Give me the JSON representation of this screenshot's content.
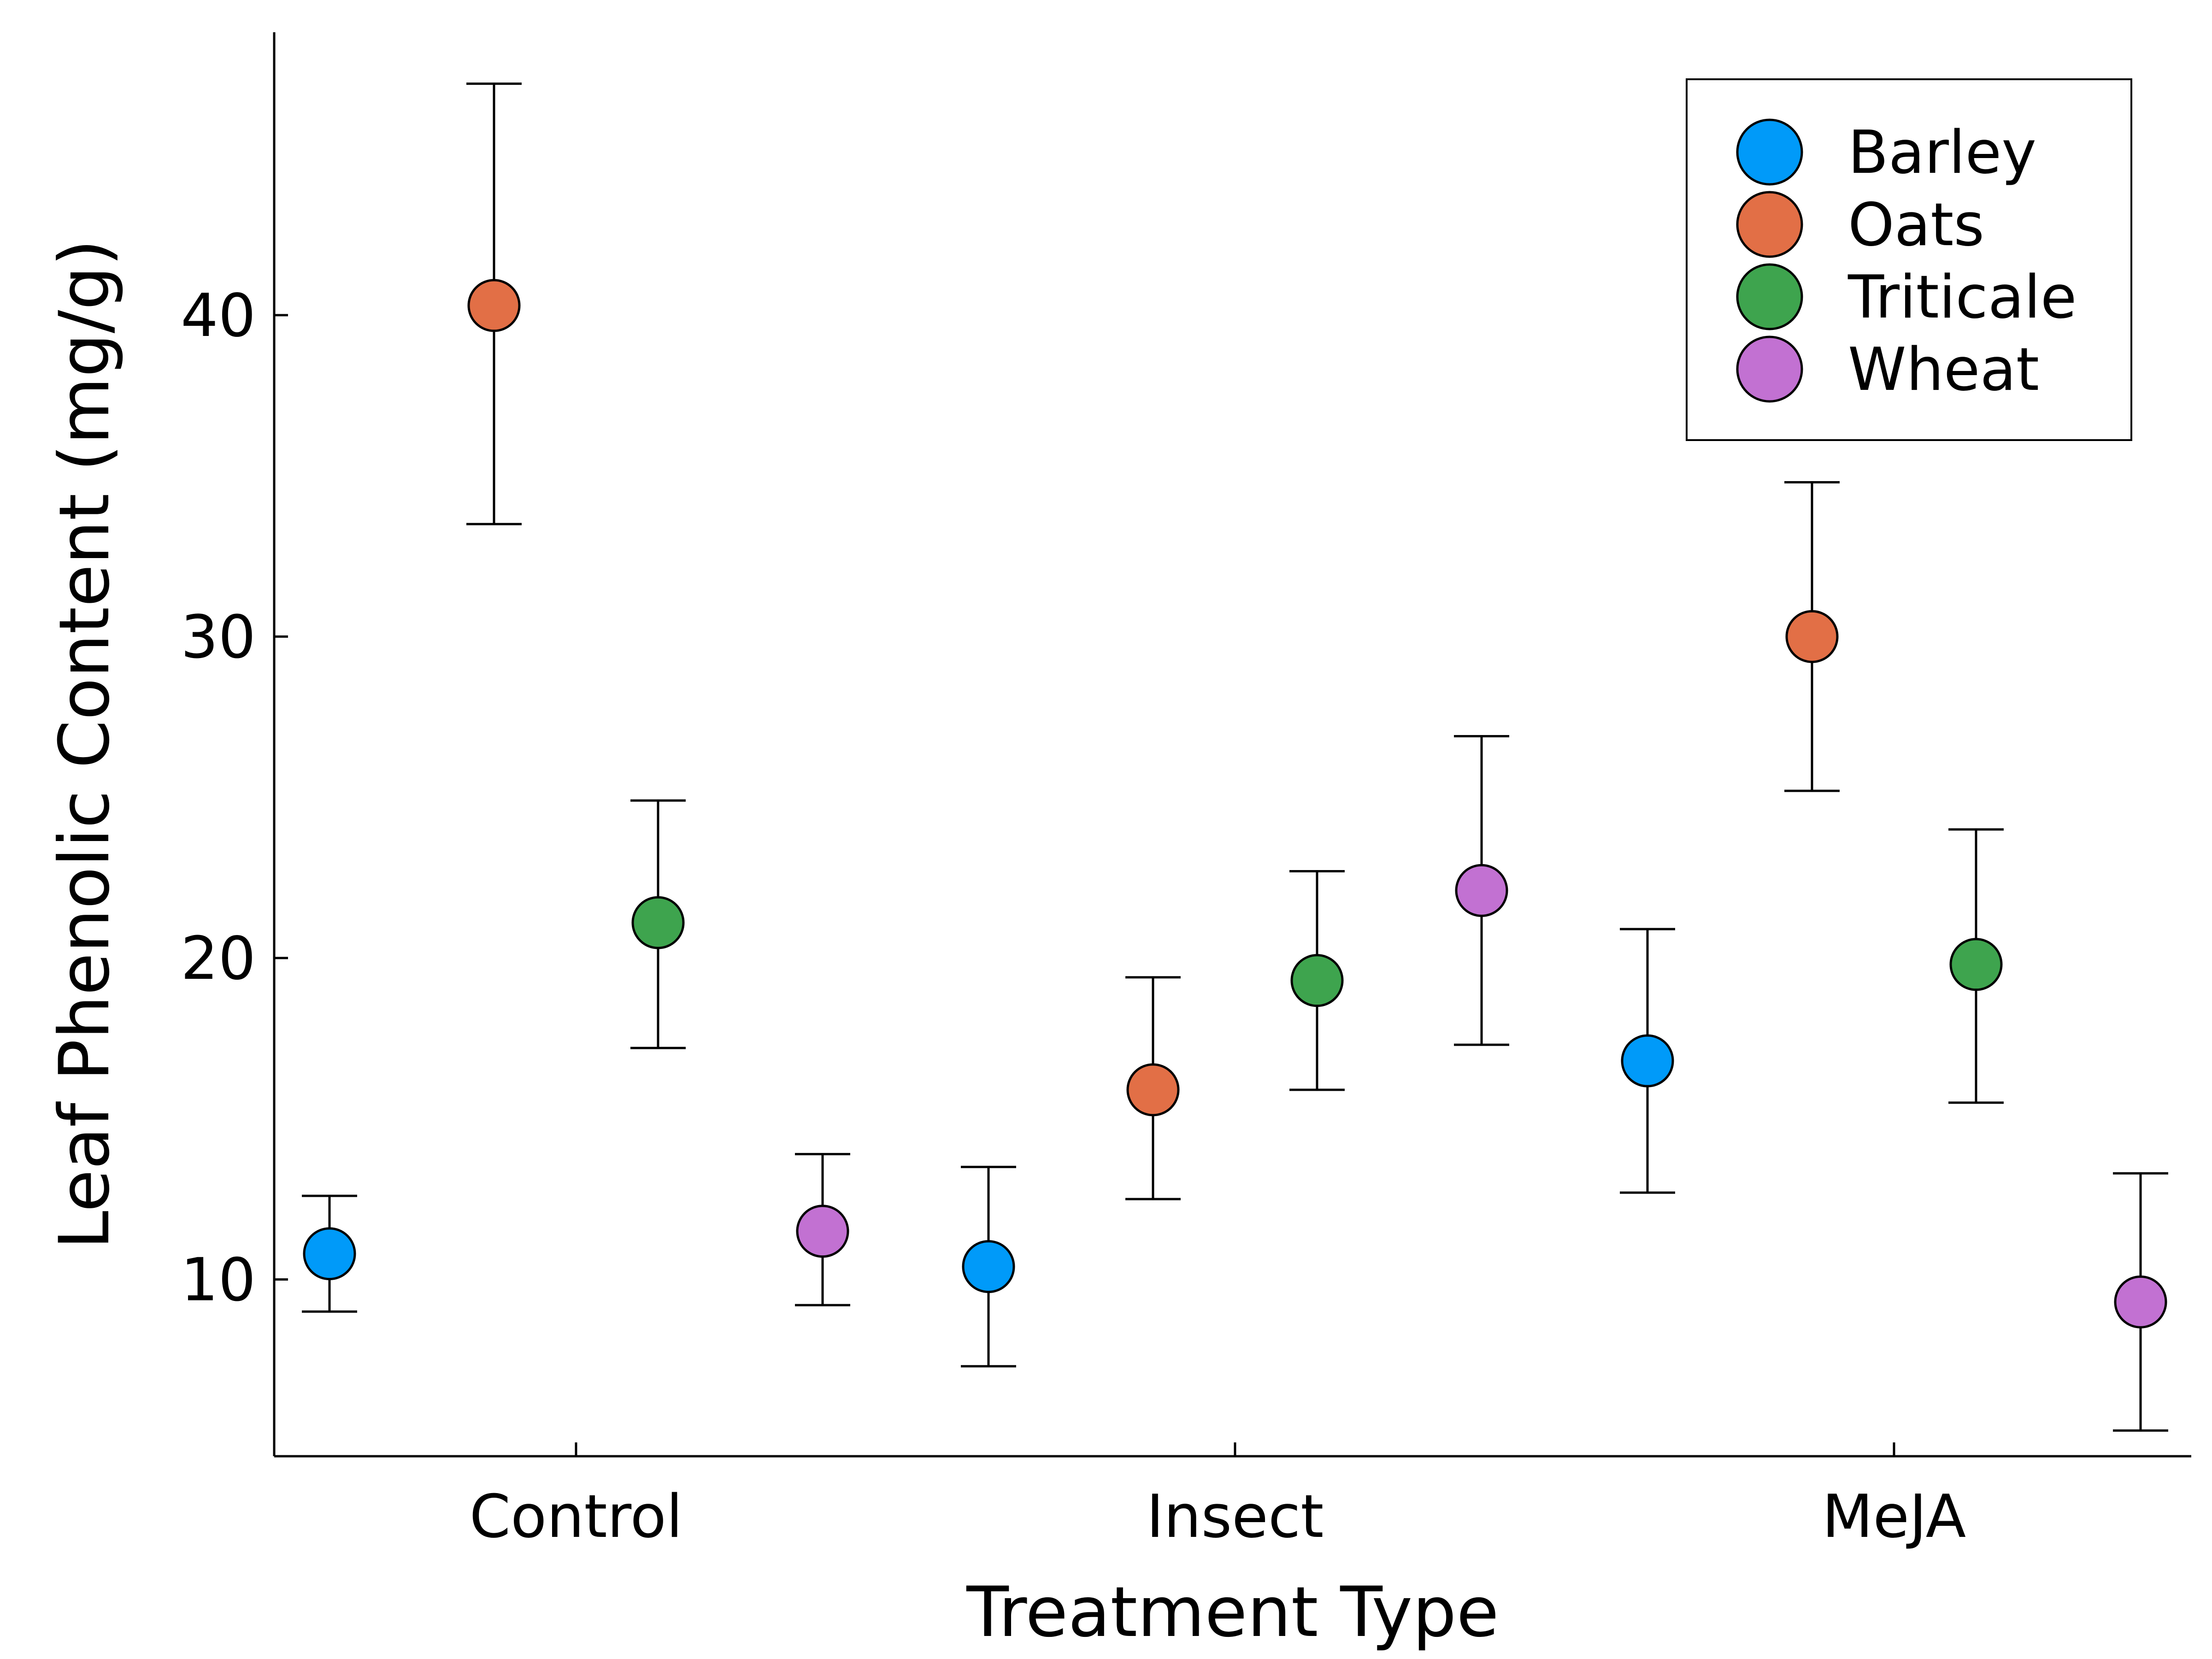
{
  "chart_data": {
    "type": "scatter",
    "title": "",
    "xlabel": "Treatment Type",
    "ylabel": "Leaf Phenolic Content (mg/g)",
    "categories": [
      "Control",
      "Insect",
      "MeJA"
    ],
    "yticks": [
      10,
      20,
      30,
      40
    ],
    "ylim": [
      4.5,
      48.8
    ],
    "grid": false,
    "legend_position": "top-right",
    "series": [
      {
        "name": "Barley",
        "color": "#009af9",
        "values": [
          10.8,
          10.4,
          16.8
        ],
        "lower": [
          9.0,
          7.3,
          12.7
        ],
        "upper": [
          12.6,
          13.5,
          20.9
        ]
      },
      {
        "name": "Oats",
        "color": "#e26f46",
        "values": [
          40.3,
          15.9,
          30.0
        ],
        "lower": [
          33.5,
          12.5,
          25.2
        ],
        "upper": [
          47.2,
          19.4,
          34.8
        ]
      },
      {
        "name": "Triticale",
        "color": "#3ea44e",
        "values": [
          21.1,
          19.3,
          19.8
        ],
        "lower": [
          17.2,
          15.9,
          15.5
        ],
        "upper": [
          24.9,
          22.7,
          24.0
        ]
      },
      {
        "name": "Wheat",
        "color": "#c271d2",
        "values": [
          11.5,
          22.1,
          9.3
        ],
        "lower": [
          9.2,
          17.3,
          5.3
        ],
        "upper": [
          13.9,
          26.9,
          13.3
        ]
      }
    ]
  }
}
